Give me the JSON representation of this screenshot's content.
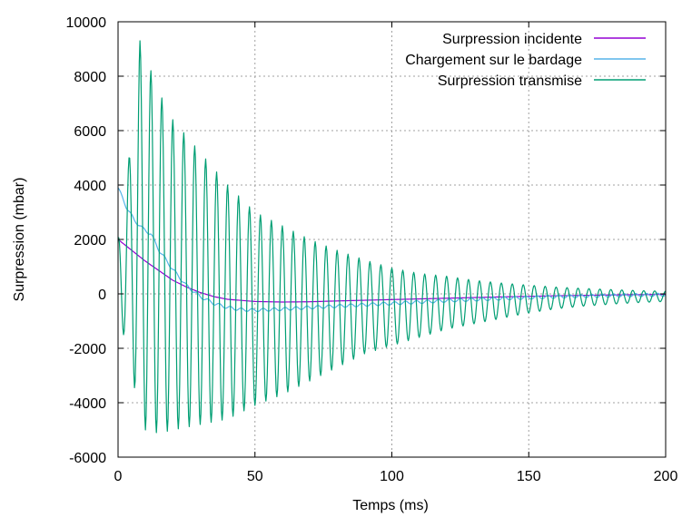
{
  "chart_data": {
    "type": "line",
    "title": "",
    "xlabel": "Temps (ms)",
    "ylabel": "Surpression (mbar)",
    "xlim": [
      0,
      200
    ],
    "ylim": [
      -6000,
      10000
    ],
    "grid": true,
    "legend_position": "top-right",
    "x_ticks": [
      0,
      50,
      100,
      150,
      200
    ],
    "x_tick_labels": [
      "0",
      "50",
      "100",
      "150",
      "200"
    ],
    "y_ticks": [
      -6000,
      -4000,
      -2000,
      0,
      2000,
      4000,
      6000,
      8000,
      10000
    ],
    "y_tick_labels": [
      "-6000",
      "-4000",
      "-2000",
      "0",
      "2000",
      "4000",
      "6000",
      "8000",
      "10000"
    ],
    "series": [
      {
        "name": "Surpression incidente",
        "color": "#9400d3",
        "x": [
          0,
          5,
          10,
          15,
          20,
          25,
          30,
          35,
          40,
          50,
          60,
          70,
          80,
          100,
          120,
          140,
          160,
          180,
          200
        ],
        "y": [
          2000,
          1600,
          1200,
          850,
          500,
          250,
          50,
          -100,
          -200,
          -280,
          -300,
          -290,
          -260,
          -210,
          -160,
          -110,
          -70,
          -40,
          -20
        ]
      },
      {
        "name": "Chargement sur le bardage",
        "color": "#56b4e9",
        "x": [
          0,
          3,
          6,
          9,
          12,
          15,
          20,
          25,
          30,
          35,
          40,
          45,
          50,
          60,
          70,
          80,
          100,
          120,
          140,
          160,
          180,
          200
        ],
        "y": [
          3900,
          3200,
          2700,
          2400,
          2200,
          1600,
          900,
          300,
          -100,
          -350,
          -500,
          -580,
          -600,
          -560,
          -500,
          -450,
          -350,
          -250,
          -170,
          -100,
          -60,
          -30
        ]
      },
      {
        "name": "Surpression transmise",
        "color": "#009e73",
        "amplitude_time": [
          0,
          4,
          8,
          12,
          16,
          20,
          25,
          30,
          40,
          50,
          60,
          70,
          80,
          90,
          100,
          110,
          120,
          130,
          140,
          150,
          160,
          170,
          180,
          190,
          200
        ],
        "upper_envelope": [
          2000,
          5000,
          9300,
          8200,
          7200,
          6400,
          5800,
          5200,
          4000,
          3000,
          2500,
          2000,
          1600,
          1250,
          950,
          750,
          650,
          500,
          400,
          320,
          250,
          200,
          160,
          120,
          100
        ],
        "lower_envelope": [
          -1000,
          -2000,
          -4900,
          -5100,
          -5100,
          -5000,
          -4900,
          -4800,
          -4600,
          -4100,
          -3700,
          -3200,
          -2700,
          -2200,
          -1900,
          -1600,
          -1300,
          -1100,
          -900,
          -700,
          -550,
          -450,
          -380,
          -320,
          -280
        ],
        "period_ms": 4
      }
    ]
  }
}
